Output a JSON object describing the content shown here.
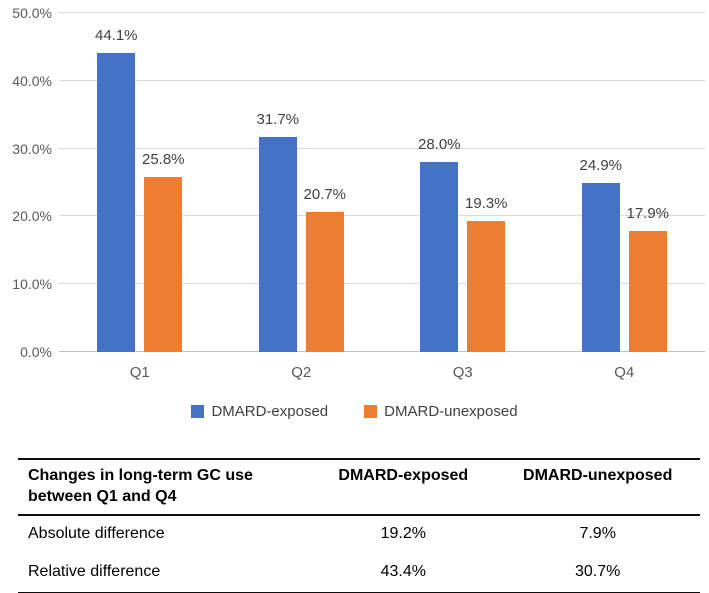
{
  "chart_data": {
    "type": "bar",
    "categories": [
      "Q1",
      "Q2",
      "Q3",
      "Q4"
    ],
    "series": [
      {
        "name": "DMARD-exposed",
        "color": "#4472C4",
        "values": [
          44.1,
          31.7,
          28.0,
          24.9
        ]
      },
      {
        "name": "DMARD-unexposed",
        "color": "#ED7D31",
        "values": [
          25.8,
          20.7,
          19.3,
          17.9
        ]
      }
    ],
    "value_label_format": "percent_one_decimal",
    "title": "",
    "xlabel": "",
    "ylabel": "",
    "ylim": [
      0,
      50
    ],
    "yticks": [
      0,
      10,
      20,
      30,
      40,
      50
    ],
    "ytick_labels": [
      "0.0%",
      "10.0%",
      "20.0%",
      "30.0%",
      "40.0%",
      "50.0%"
    ],
    "grid": true,
    "legend_position": "bottom"
  },
  "table": {
    "header": {
      "col1": "Changes in long-term GC use between Q1 and Q4",
      "col2": "DMARD-exposed",
      "col3": "DMARD-unexposed"
    },
    "rows": [
      {
        "label": "Absolute difference",
        "col2": "19.2%",
        "col3": "7.9%"
      },
      {
        "label": "Relative difference",
        "col2": "43.4%",
        "col3": "30.7%"
      }
    ]
  },
  "colors": {
    "series_exposed": "#4472C4",
    "series_unexposed": "#ED7D31",
    "gridline": "#D9D9D9",
    "axis_text": "#595959",
    "data_label_text": "#404040",
    "table_text": "#000000"
  }
}
